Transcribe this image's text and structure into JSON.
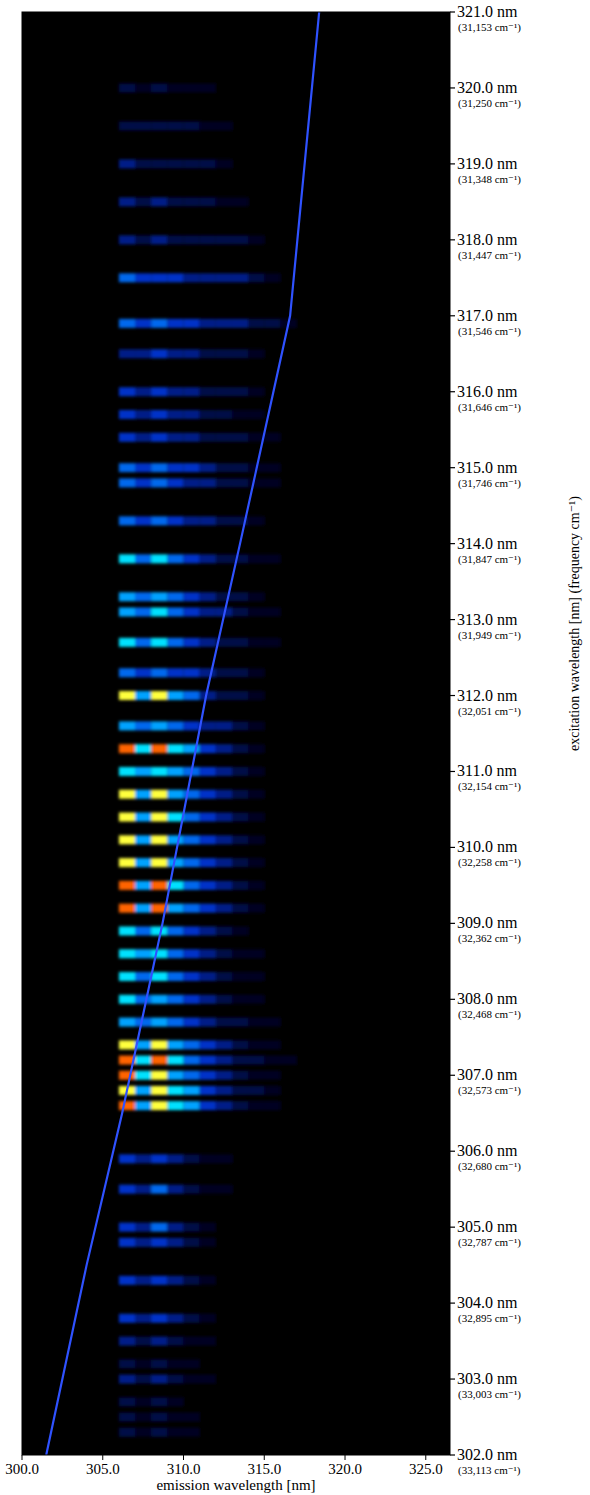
{
  "chart_data": {
    "type": "heatmap",
    "x_label": "emission wavelength [nm]",
    "y_label": "excitation wavelength [nm] (frequency cm⁻¹)",
    "xlim": [
      300,
      326.5
    ],
    "xticks": [
      {
        "value": 300,
        "label": "300.0"
      },
      {
        "value": 305,
        "label": "305.0"
      },
      {
        "value": 310,
        "label": "310.0"
      },
      {
        "value": 315,
        "label": "315.0"
      },
      {
        "value": 320,
        "label": "320.0"
      },
      {
        "value": 325,
        "label": "325.0"
      }
    ],
    "ylim": [
      302,
      321
    ],
    "yticks": [
      {
        "value": 302,
        "label": "302.0 nm"
      },
      {
        "value": 303,
        "label": "303.0 nm"
      },
      {
        "value": 304,
        "label": "304.0 nm"
      },
      {
        "value": 305,
        "label": "305.0 nm"
      },
      {
        "value": 306,
        "label": "306.0 nm"
      },
      {
        "value": 307,
        "label": "307.0 nm"
      },
      {
        "value": 308,
        "label": "308.0 nm"
      },
      {
        "value": 309,
        "label": "309.0 nm"
      },
      {
        "value": 310,
        "label": "310.0 nm"
      },
      {
        "value": 311,
        "label": "311.0 nm"
      },
      {
        "value": 312,
        "label": "312.0 nm"
      },
      {
        "value": 313,
        "label": "313.0 nm"
      },
      {
        "value": 314,
        "label": "314.0 nm"
      },
      {
        "value": 315,
        "label": "315.0 nm"
      },
      {
        "value": 316,
        "label": "316.0 nm"
      },
      {
        "value": 317,
        "label": "317.0 nm"
      },
      {
        "value": 318,
        "label": "318.0 nm"
      },
      {
        "value": 319,
        "label": "319.0 nm"
      },
      {
        "value": 320,
        "label": "320.0 nm"
      },
      {
        "value": 321,
        "label": "321.0 nm"
      }
    ],
    "ytick_frequencies": [
      "(33,113 cm⁻¹)",
      "(33,003 cm⁻¹)",
      "(32,895 cm⁻¹)",
      "(32,787 cm⁻¹)",
      "(32,680 cm⁻¹)",
      "(32,573 cm⁻¹)",
      "(32,468 cm⁻¹)",
      "(32,362 cm⁻¹)",
      "(32,258 cm⁻¹)",
      "(32,154 cm⁻¹)",
      "(32,051 cm⁻¹)",
      "(31,949 cm⁻¹)",
      "(31,847 cm⁻¹)",
      "(31,746 cm⁻¹)",
      "(31,646 cm⁻¹)",
      "(31,546 cm⁻¹)",
      "(31,447 cm⁻¹)",
      "(31,348 cm⁻¹)",
      "(31,250 cm⁻¹)",
      "(31,153 cm⁻¹)"
    ],
    "color_range": [
      0,
      10
    ],
    "x_bins": [
      306,
      307,
      308,
      309,
      310,
      311,
      312,
      313,
      314,
      315,
      316,
      317,
      318,
      319,
      320
    ],
    "y": [
      302.3,
      302.5,
      302.7,
      303.0,
      303.2,
      303.5,
      303.8,
      304.3,
      304.8,
      305.0,
      305.5,
      305.9,
      306.6,
      306.8,
      307.0,
      307.2,
      307.4,
      307.7,
      308.0,
      308.3,
      308.6,
      308.9,
      309.2,
      309.5,
      309.8,
      310.1,
      310.4,
      310.7,
      311.0,
      311.3,
      311.6,
      312.0,
      312.3,
      312.7,
      313.1,
      313.3,
      313.8,
      314.3,
      314.8,
      315.0,
      315.4,
      315.7,
      316.0,
      316.5,
      316.9,
      317.5,
      318.0,
      318.5,
      319.0,
      319.5,
      320.0
    ],
    "values": [
      [
        2,
        1,
        2,
        1,
        1,
        0,
        0,
        0,
        0,
        0,
        0,
        0,
        0,
        0
      ],
      [
        2,
        1,
        2,
        1,
        1,
        0,
        0,
        0,
        0,
        0,
        0,
        0,
        0,
        0
      ],
      [
        2,
        1,
        2,
        1,
        0,
        0,
        0,
        0,
        0,
        0,
        0,
        0,
        0,
        0
      ],
      [
        3,
        2,
        3,
        2,
        1,
        1,
        0,
        0,
        0,
        0,
        0,
        0,
        0,
        0
      ],
      [
        2,
        1,
        2,
        1,
        1,
        0,
        0,
        0,
        0,
        0,
        0,
        0,
        0,
        0
      ],
      [
        3,
        2,
        3,
        2,
        1,
        1,
        0,
        0,
        0,
        0,
        0,
        0,
        0,
        0
      ],
      [
        4,
        3,
        4,
        3,
        2,
        1,
        0,
        0,
        0,
        0,
        0,
        0,
        0,
        0
      ],
      [
        4,
        3,
        4,
        3,
        2,
        1,
        0,
        0,
        0,
        0,
        0,
        0,
        0,
        0
      ],
      [
        4,
        3,
        4,
        3,
        2,
        1,
        0,
        0,
        0,
        0,
        0,
        0,
        0,
        0
      ],
      [
        4,
        3,
        5,
        3,
        2,
        1,
        0,
        0,
        0,
        0,
        0,
        0,
        0,
        0
      ],
      [
        4,
        3,
        5,
        3,
        2,
        1,
        1,
        0,
        0,
        0,
        0,
        0,
        0,
        0
      ],
      [
        4,
        3,
        4,
        3,
        2,
        1,
        1,
        0,
        0,
        0,
        0,
        0,
        0,
        0
      ],
      [
        9,
        6,
        8,
        7,
        6,
        4,
        3,
        2,
        1,
        1,
        0,
        0,
        0,
        0
      ],
      [
        8,
        6,
        8,
        7,
        6,
        4,
        3,
        2,
        2,
        1,
        0,
        0,
        0,
        0
      ],
      [
        9,
        7,
        8,
        6,
        5,
        4,
        3,
        2,
        1,
        1,
        0,
        0,
        0,
        0
      ],
      [
        9,
        7,
        9,
        7,
        5,
        4,
        3,
        2,
        2,
        1,
        1,
        0,
        0,
        0
      ],
      [
        8,
        6,
        8,
        6,
        5,
        4,
        3,
        2,
        1,
        1,
        0,
        0,
        0,
        0
      ],
      [
        6,
        5,
        6,
        5,
        4,
        3,
        2,
        2,
        1,
        1,
        0,
        0,
        0,
        0
      ],
      [
        7,
        5,
        6,
        5,
        4,
        3,
        2,
        1,
        1,
        0,
        0,
        0,
        0,
        0
      ],
      [
        7,
        5,
        7,
        5,
        4,
        3,
        2,
        1,
        1,
        0,
        0,
        0,
        0,
        0
      ],
      [
        7,
        6,
        7,
        5,
        4,
        3,
        2,
        1,
        1,
        0,
        0,
        0,
        0,
        0
      ],
      [
        7,
        5,
        7,
        5,
        4,
        3,
        2,
        1,
        0,
        0,
        0,
        0,
        0,
        0
      ],
      [
        9,
        6,
        9,
        6,
        5,
        4,
        3,
        2,
        1,
        0,
        0,
        0,
        0,
        0
      ],
      [
        9,
        6,
        9,
        7,
        5,
        4,
        3,
        2,
        1,
        0,
        0,
        0,
        0,
        0
      ],
      [
        8,
        6,
        8,
        6,
        5,
        4,
        3,
        2,
        1,
        0,
        0,
        0,
        0,
        0
      ],
      [
        8,
        6,
        8,
        6,
        5,
        4,
        3,
        2,
        1,
        0,
        0,
        0,
        0,
        0
      ],
      [
        8,
        6,
        8,
        7,
        5,
        4,
        3,
        2,
        1,
        0,
        0,
        0,
        0,
        0
      ],
      [
        8,
        6,
        8,
        6,
        5,
        4,
        3,
        2,
        1,
        0,
        0,
        0,
        0,
        0
      ],
      [
        7,
        6,
        7,
        6,
        5,
        4,
        3,
        2,
        1,
        0,
        0,
        0,
        0,
        0
      ],
      [
        9,
        7,
        9,
        7,
        6,
        4,
        3,
        2,
        1,
        0,
        0,
        0,
        0,
        0
      ],
      [
        6,
        5,
        6,
        5,
        4,
        3,
        3,
        2,
        1,
        0,
        0,
        0,
        0,
        0
      ],
      [
        8,
        6,
        8,
        6,
        5,
        3,
        2,
        2,
        1,
        0,
        0,
        0,
        0,
        0
      ],
      [
        5,
        4,
        5,
        4,
        4,
        3,
        2,
        2,
        1,
        0,
        0,
        0,
        0,
        0
      ],
      [
        7,
        5,
        7,
        5,
        4,
        3,
        2,
        2,
        1,
        1,
        0,
        0,
        0,
        0
      ],
      [
        6,
        5,
        7,
        5,
        4,
        3,
        3,
        2,
        1,
        1,
        0,
        0,
        0,
        0
      ],
      [
        6,
        5,
        6,
        5,
        4,
        3,
        2,
        2,
        1,
        0,
        0,
        0,
        0,
        0
      ],
      [
        7,
        5,
        7,
        5,
        4,
        3,
        2,
        2,
        1,
        1,
        0,
        0,
        0,
        0
      ],
      [
        5,
        4,
        5,
        4,
        3,
        3,
        2,
        2,
        1,
        0,
        0,
        0,
        0,
        0
      ],
      [
        5,
        4,
        5,
        4,
        3,
        3,
        2,
        2,
        1,
        1,
        0,
        0,
        0,
        0
      ],
      [
        5,
        4,
        5,
        4,
        4,
        3,
        2,
        2,
        1,
        1,
        0,
        0,
        0,
        0
      ],
      [
        4,
        3,
        4,
        3,
        3,
        2,
        2,
        2,
        1,
        1,
        0,
        0,
        0,
        0
      ],
      [
        4,
        3,
        4,
        3,
        3,
        2,
        2,
        1,
        1,
        0,
        0,
        0,
        0,
        0
      ],
      [
        4,
        3,
        4,
        3,
        3,
        2,
        2,
        2,
        1,
        0,
        0,
        0,
        0,
        0
      ],
      [
        3,
        3,
        4,
        3,
        3,
        2,
        2,
        2,
        1,
        0,
        0,
        0,
        0,
        0
      ],
      [
        5,
        4,
        5,
        4,
        4,
        3,
        3,
        3,
        2,
        2,
        1,
        0,
        0,
        0
      ],
      [
        5,
        4,
        4,
        4,
        3,
        3,
        3,
        3,
        2,
        1,
        0,
        0,
        0,
        0
      ],
      [
        3,
        2,
        3,
        2,
        2,
        2,
        2,
        2,
        1,
        0,
        0,
        0,
        0,
        0
      ],
      [
        3,
        2,
        3,
        2,
        2,
        2,
        1,
        1,
        0,
        0,
        0,
        0,
        0,
        0
      ],
      [
        3,
        2,
        2,
        2,
        2,
        2,
        1,
        0,
        0,
        0,
        0,
        0,
        0,
        0
      ],
      [
        2,
        2,
        2,
        2,
        2,
        1,
        1,
        0,
        0,
        0,
        0,
        0,
        0,
        0
      ],
      [
        2,
        1,
        2,
        1,
        1,
        1,
        0,
        0,
        0,
        0,
        0,
        0,
        0,
        0
      ]
    ],
    "series": [
      {
        "type": "line",
        "color": "#2f52ff",
        "x": [
          301.5,
          304.0,
          306.2,
          308.7,
          311.4,
          313.5,
          316.6,
          318.4
        ],
        "y": [
          302.0,
          304.5,
          306.5,
          309.0,
          312.0,
          314.0,
          317.0,
          321.0
        ]
      }
    ]
  }
}
